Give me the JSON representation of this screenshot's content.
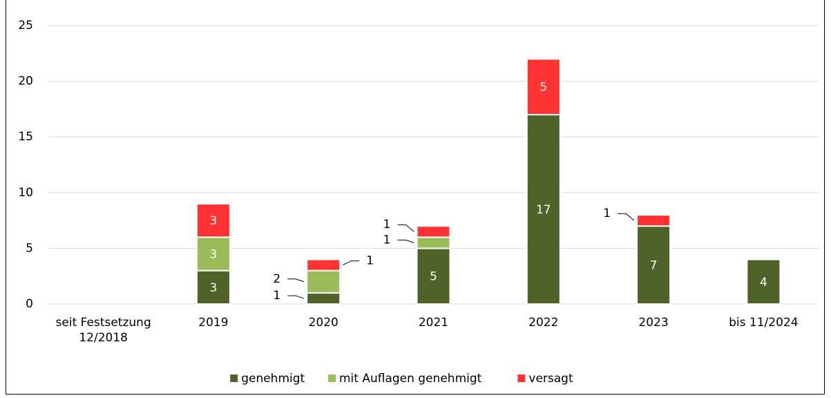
{
  "chart_data": {
    "type": "stacked-bar",
    "categories": [
      "seit Festsetzung 12/2018",
      "2019",
      "2020",
      "2021",
      "2022",
      "2023",
      "bis 11/2024"
    ],
    "series": [
      {
        "name": "genehmigt",
        "color": "#4f6228",
        "values": [
          0,
          3,
          1,
          5,
          17,
          7,
          4
        ]
      },
      {
        "name": "mit Auflagen genehmigt",
        "color": "#9bbb59",
        "values": [
          0,
          3,
          2,
          1,
          0,
          0,
          0
        ]
      },
      {
        "name": "versagt",
        "color": "#ff3333",
        "values": [
          0,
          3,
          1,
          1,
          5,
          1,
          0
        ]
      }
    ],
    "ylim": [
      0,
      25
    ],
    "yticks": [
      0,
      5,
      10,
      15,
      20,
      25
    ],
    "grid": true,
    "legend": "bottom"
  }
}
